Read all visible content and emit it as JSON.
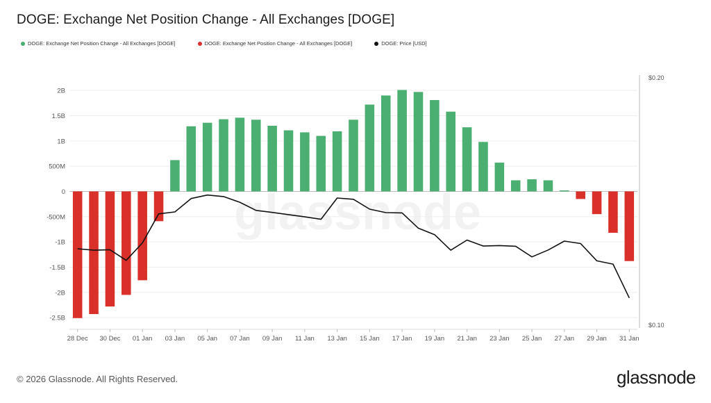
{
  "title": "DOGE: Exchange Net Position Change - All Exchanges [DOGE]",
  "legend": [
    {
      "label": "DOGE: Exchange Net Position Change - All Exchanges [DOGE]",
      "color": "#4caf72"
    },
    {
      "label": "DOGE: Exchange Net Position Change - All Exchanges [DOGE]",
      "color": "#d9302a"
    },
    {
      "label": "DOGE: Price [USD]",
      "color": "#111111"
    }
  ],
  "watermark": "glassnode",
  "footer": {
    "copyright": "© 2026 Glassnode. All Rights Reserved.",
    "brand": "glassnode"
  },
  "chart_data": {
    "type": "bar",
    "title": "DOGE: Exchange Net Position Change - All Exchanges [DOGE]",
    "categories": [
      "28 Dec",
      "29 Dec",
      "30 Dec",
      "31 Dec",
      "01 Jan",
      "02 Jan",
      "03 Jan",
      "04 Jan",
      "05 Jan",
      "06 Jan",
      "07 Jan",
      "08 Jan",
      "09 Jan",
      "10 Jan",
      "11 Jan",
      "12 Jan",
      "13 Jan",
      "14 Jan",
      "15 Jan",
      "16 Jan",
      "17 Jan",
      "18 Jan",
      "19 Jan",
      "20 Jan",
      "21 Jan",
      "22 Jan",
      "23 Jan",
      "24 Jan",
      "25 Jan",
      "26 Jan",
      "27 Jan",
      "28 Jan",
      "29 Jan",
      "30 Jan",
      "31 Jan"
    ],
    "x_tick_labels": [
      "28 Dec",
      "30 Dec",
      "01 Jan",
      "03 Jan",
      "05 Jan",
      "07 Jan",
      "09 Jan",
      "11 Jan",
      "13 Jan",
      "15 Jan",
      "17 Jan",
      "19 Jan",
      "21 Jan",
      "23 Jan",
      "25 Jan",
      "27 Jan",
      "29 Jan",
      "31 Jan"
    ],
    "series": [
      {
        "axis": "left",
        "positive_color": "#4caf72",
        "negative_color": "#d9302a",
        "values": [
          -2510000000.0,
          -2430000000.0,
          -2280000000.0,
          -2050000000.0,
          -1760000000.0,
          -590000000.0,
          620000000.0,
          1290000000.0,
          1360000000.0,
          1430000000.0,
          1460000000.0,
          1420000000.0,
          1300000000.0,
          1210000000.0,
          1170000000.0,
          1100000000.0,
          1190000000.0,
          1420000000.0,
          1720000000.0,
          1900000000.0,
          2010000000.0,
          1970000000.0,
          1810000000.0,
          1580000000.0,
          1270000000.0,
          980000000.0,
          570000000.0,
          220000000.0,
          240000000.0,
          220000000.0,
          20000000.0,
          -150000000.0,
          -450000000.0,
          -820000000.0,
          -1380000000.0
        ]
      },
      {
        "name": "DOGE: Price [USD]",
        "axis": "right",
        "color": "#111111",
        "values": [
          0.1309,
          0.1303,
          0.1305,
          0.1262,
          0.1333,
          0.145,
          0.1458,
          0.1512,
          0.1526,
          0.152,
          0.1497,
          0.1464,
          0.1456,
          0.1447,
          0.1438,
          0.1428,
          0.1514,
          0.1509,
          0.1469,
          0.1455,
          0.1454,
          0.1392,
          0.1366,
          0.1303,
          0.1344,
          0.132,
          0.1322,
          0.1319,
          0.1276,
          0.1304,
          0.134,
          0.133,
          0.126,
          0.1247,
          0.111
        ]
      }
    ],
    "y_left": {
      "ticks": [
        2000000000.0,
        1500000000.0,
        1000000000.0,
        500000000.0,
        0,
        -500000000.0,
        -1000000000.0,
        -1500000000.0,
        -2000000000.0,
        -2500000000.0
      ],
      "tick_labels": [
        "2B",
        "1.5B",
        "1B",
        "500M",
        "0",
        "-500M",
        "-1B",
        "-1.5B",
        "-2B",
        "-2.5B"
      ],
      "ylim": [
        -2650000000.0,
        2250000000.0
      ]
    },
    "y_right": {
      "tick_labels": [
        "$0.20",
        "$0.10"
      ],
      "ylim": [
        0.1,
        0.2
      ]
    },
    "grid": true,
    "legend_position": "top-left"
  }
}
